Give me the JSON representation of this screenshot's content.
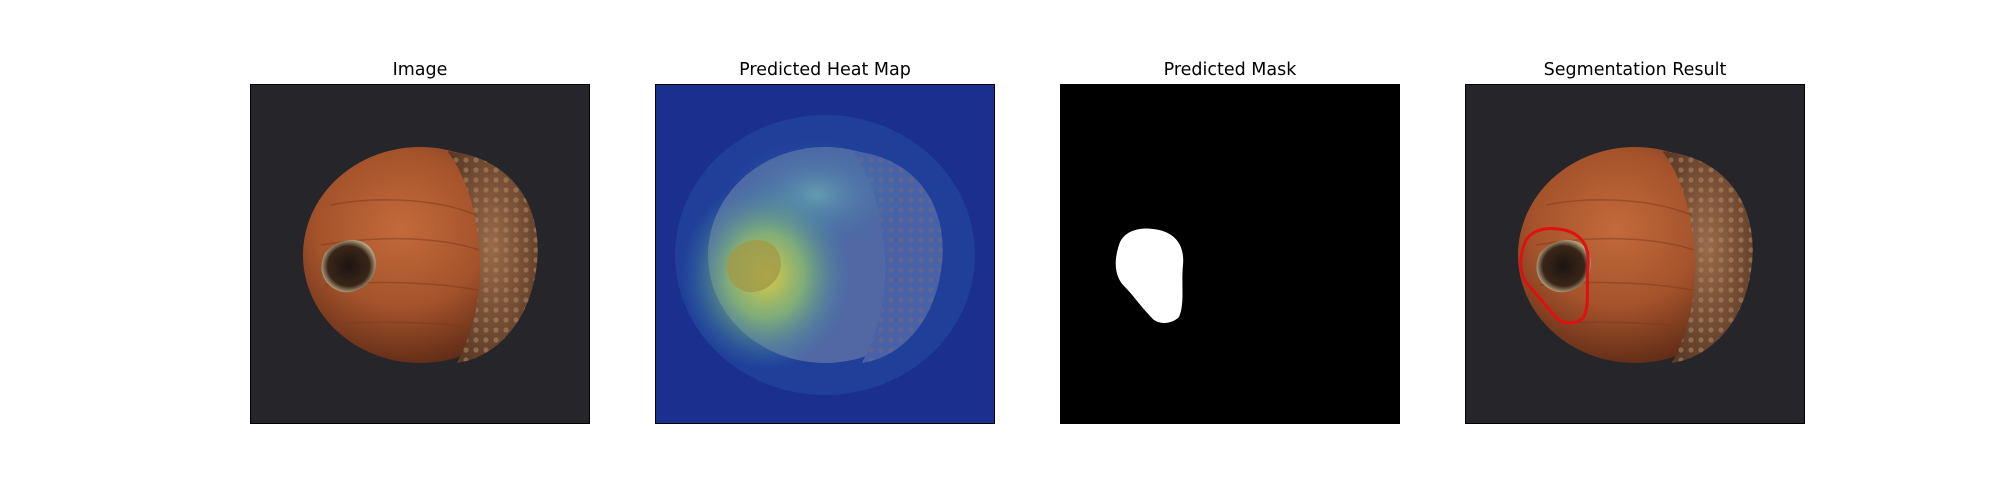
{
  "panels": [
    {
      "title": "Image"
    },
    {
      "title": "Predicted Heat Map"
    },
    {
      "title": "Predicted Mask"
    },
    {
      "title": "Segmentation Result"
    }
  ],
  "colors": {
    "background": "#26262a",
    "nut_shell": "#a5532b",
    "heatmap_low": "#1a2f8e",
    "heatmap_high": "#d8c83a",
    "mask_fg": "#ffffff",
    "mask_bg": "#000000",
    "contour": "#e01010"
  }
}
